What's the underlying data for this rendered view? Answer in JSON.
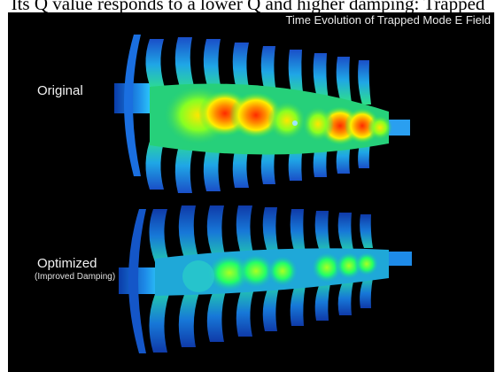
{
  "caption_top": "Its Q value responds to a lower Q and higher damping: Trapped",
  "title": "Time Evolution of Trapped Mode E Field",
  "labels": {
    "original": "Original",
    "optimized": "Optimized",
    "optimized_sub": "(Improved Damping)"
  },
  "colors": {
    "background": "#000000",
    "field_high": "#ff2a00",
    "field_mid": "#ffee00",
    "field_low": "#22ff44",
    "field_base": "#1e7fe0"
  }
}
